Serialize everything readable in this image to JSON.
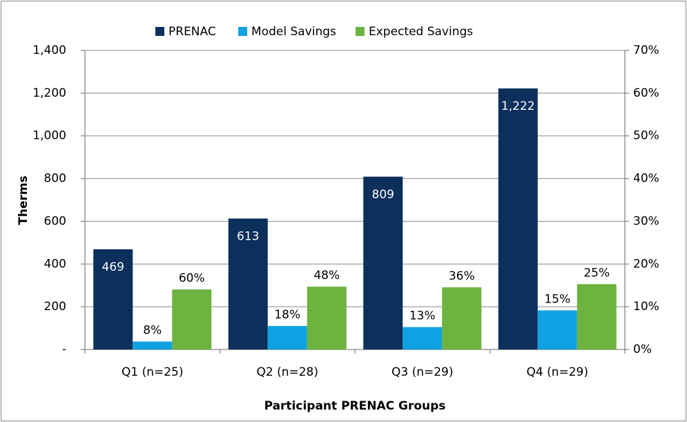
{
  "chart_data": {
    "type": "bar",
    "x_label": "Participant PRENAC Groups",
    "y_label": "Therms",
    "categories": [
      "Q1 (n=25)",
      "Q2 (n=28)",
      "Q3 (n=29)",
      "Q4 (n=29)"
    ],
    "series": [
      {
        "name": "PRENAC",
        "color": "#0c2f5c",
        "values": [
          469,
          613,
          809,
          1222
        ],
        "value_labels": [
          "469",
          "613",
          "809",
          "1,222"
        ]
      },
      {
        "name": "Model Savings",
        "color": "#0ea2e2",
        "values": [
          37,
          110,
          105,
          183
        ],
        "data_labels": [
          "8%",
          "18%",
          "13%",
          "15%"
        ]
      },
      {
        "name": "Expected Savings",
        "color": "#6cb33f",
        "values": [
          281,
          294,
          291,
          306
        ],
        "data_labels": [
          "60%",
          "48%",
          "36%",
          "25%"
        ]
      }
    ],
    "ylim": [
      0,
      1400
    ],
    "yticks": [
      {
        "value": 0,
        "label": "-"
      },
      200,
      400,
      600,
      800,
      {
        "value": 1000,
        "label": "1,000"
      },
      {
        "value": 1200,
        "label": "1,200"
      },
      {
        "value": 1400,
        "label": "1,400"
      }
    ],
    "y2lim": [
      0,
      70
    ],
    "y2ticks": [
      {
        "value": 0,
        "label": "0%"
      },
      {
        "value": 10,
        "label": "10%"
      },
      {
        "value": 20,
        "label": "20%"
      },
      {
        "value": 30,
        "label": "30%"
      },
      {
        "value": 40,
        "label": "40%"
      },
      {
        "value": 50,
        "label": "50%"
      },
      {
        "value": 60,
        "label": "60%"
      },
      {
        "value": 70,
        "label": "70%"
      }
    ],
    "grid": true,
    "legend": "top"
  }
}
